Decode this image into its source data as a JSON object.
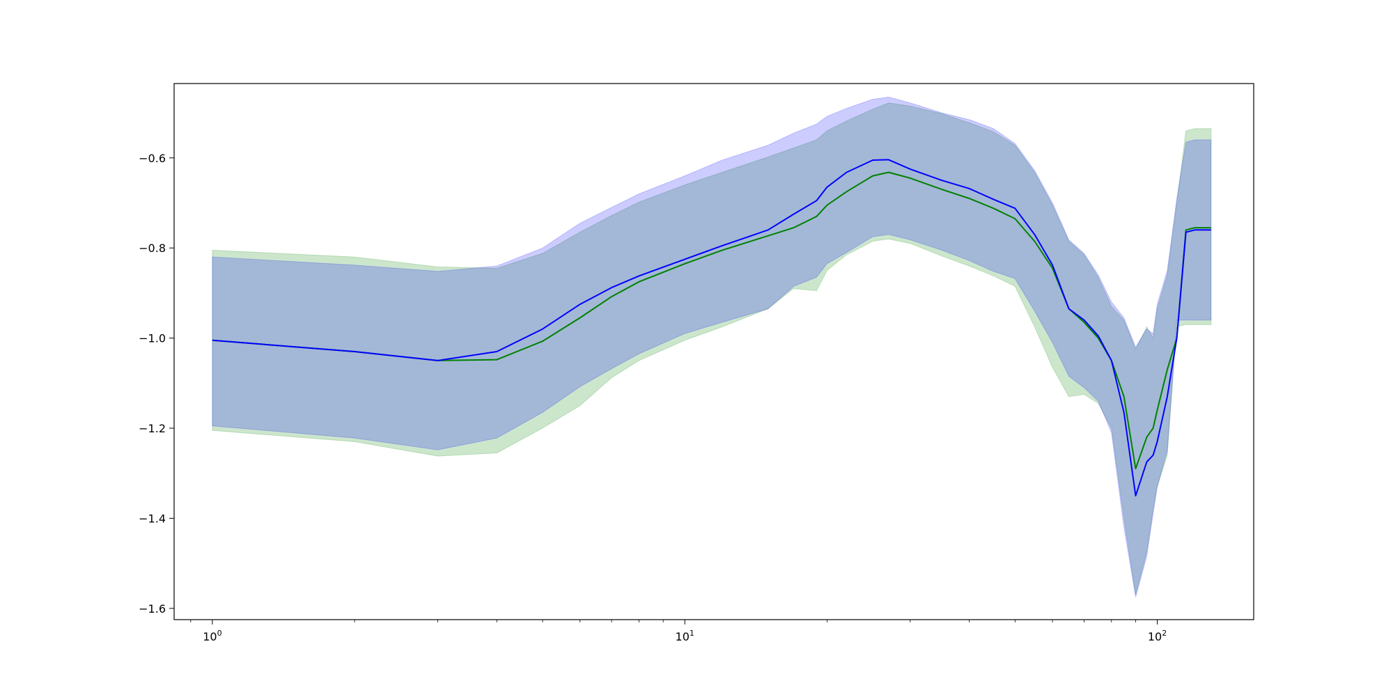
{
  "chart_data": {
    "type": "area",
    "title": "",
    "xlabel": "",
    "ylabel": "",
    "xscale": "log",
    "xlim": [
      0.83,
      160
    ],
    "ylim": [
      -1.625,
      -0.435
    ],
    "grid": false,
    "legend": "none",
    "x_ticks": [
      {
        "value": 1,
        "base": "10",
        "exp": "0"
      },
      {
        "value": 10,
        "base": "10",
        "exp": "1"
      },
      {
        "value": 100,
        "base": "10",
        "exp": "2"
      }
    ],
    "y_ticks": [
      {
        "value": -0.6,
        "label": "−0.6"
      },
      {
        "value": -0.8,
        "label": "−0.8"
      },
      {
        "value": -1.0,
        "label": "−1.0"
      },
      {
        "value": -1.2,
        "label": "−1.2"
      },
      {
        "value": -1.4,
        "label": "−1.4"
      },
      {
        "value": -1.6,
        "label": "−1.6"
      }
    ],
    "series": [
      {
        "color": "#008000",
        "band_color": "#008000",
        "x": [
          1,
          2,
          3,
          4,
          5,
          6,
          7,
          8,
          10,
          12,
          15,
          17,
          19,
          20,
          22,
          25,
          27,
          30,
          35,
          40,
          45,
          50,
          55,
          60,
          65,
          70,
          75,
          80,
          85,
          90,
          95,
          98,
          100,
          105,
          110,
          115,
          120,
          130
        ],
        "mean": [
          -1.005,
          -1.03,
          -1.05,
          -1.048,
          -1.007,
          -0.955,
          -0.908,
          -0.875,
          -0.835,
          -0.805,
          -0.773,
          -0.755,
          -0.73,
          -0.705,
          -0.675,
          -0.64,
          -0.632,
          -0.645,
          -0.67,
          -0.69,
          -0.712,
          -0.735,
          -0.785,
          -0.845,
          -0.935,
          -0.965,
          -1.0,
          -1.05,
          -1.13,
          -1.29,
          -1.22,
          -1.2,
          -1.16,
          -1.07,
          -1.0,
          -0.76,
          -0.755,
          -0.755
        ],
        "upper": [
          -0.805,
          -0.82,
          -0.842,
          -0.845,
          -0.812,
          -0.765,
          -0.728,
          -0.698,
          -0.66,
          -0.632,
          -0.598,
          -0.578,
          -0.56,
          -0.54,
          -0.518,
          -0.492,
          -0.478,
          -0.485,
          -0.502,
          -0.522,
          -0.542,
          -0.572,
          -0.632,
          -0.705,
          -0.785,
          -0.815,
          -0.865,
          -0.93,
          -0.96,
          -1.025,
          -0.975,
          -1.0,
          -0.935,
          -0.86,
          -0.7,
          -0.54,
          -0.535,
          -0.535
        ],
        "lower": [
          -1.205,
          -1.23,
          -1.262,
          -1.255,
          -1.2,
          -1.15,
          -1.088,
          -1.05,
          -1.005,
          -0.975,
          -0.935,
          -0.89,
          -0.895,
          -0.85,
          -0.815,
          -0.785,
          -0.78,
          -0.79,
          -0.818,
          -0.84,
          -0.862,
          -0.885,
          -0.975,
          -1.065,
          -1.13,
          -1.125,
          -1.145,
          -1.2,
          -1.4,
          -1.57,
          -1.475,
          -1.38,
          -1.33,
          -1.26,
          -0.975,
          -0.97,
          -0.97,
          -0.97
        ]
      },
      {
        "color": "#0000ff",
        "band_color": "#0000ff",
        "x": [
          1,
          2,
          3,
          4,
          5,
          6,
          7,
          8,
          10,
          12,
          15,
          17,
          19,
          20,
          22,
          25,
          27,
          30,
          35,
          40,
          45,
          50,
          55,
          60,
          65,
          70,
          75,
          80,
          85,
          90,
          95,
          98,
          100,
          105,
          110,
          115,
          120,
          130
        ],
        "mean": [
          -1.005,
          -1.03,
          -1.05,
          -1.03,
          -0.98,
          -0.925,
          -0.888,
          -0.862,
          -0.825,
          -0.795,
          -0.76,
          -0.725,
          -0.695,
          -0.665,
          -0.632,
          -0.605,
          -0.604,
          -0.625,
          -0.65,
          -0.668,
          -0.692,
          -0.712,
          -0.77,
          -0.838,
          -0.935,
          -0.96,
          -0.995,
          -1.05,
          -1.165,
          -1.35,
          -1.275,
          -1.26,
          -1.23,
          -1.13,
          -1.0,
          -0.765,
          -0.76,
          -0.76
        ],
        "upper": [
          -0.82,
          -0.838,
          -0.852,
          -0.84,
          -0.8,
          -0.745,
          -0.71,
          -0.68,
          -0.64,
          -0.605,
          -0.572,
          -0.545,
          -0.525,
          -0.508,
          -0.49,
          -0.47,
          -0.465,
          -0.478,
          -0.5,
          -0.515,
          -0.535,
          -0.568,
          -0.628,
          -0.7,
          -0.782,
          -0.812,
          -0.86,
          -0.92,
          -0.955,
          -1.02,
          -0.98,
          -0.99,
          -0.925,
          -0.85,
          -0.69,
          -0.565,
          -0.56,
          -0.56
        ],
        "lower": [
          -1.195,
          -1.222,
          -1.248,
          -1.222,
          -1.165,
          -1.108,
          -1.068,
          -1.035,
          -0.99,
          -0.965,
          -0.935,
          -0.885,
          -0.865,
          -0.835,
          -0.81,
          -0.775,
          -0.77,
          -0.782,
          -0.805,
          -0.828,
          -0.852,
          -0.868,
          -0.94,
          -1.01,
          -1.085,
          -1.11,
          -1.14,
          -1.21,
          -1.42,
          -1.575,
          -1.485,
          -1.39,
          -1.33,
          -1.25,
          -0.96,
          -0.96,
          -0.96,
          -0.96
        ]
      }
    ]
  }
}
